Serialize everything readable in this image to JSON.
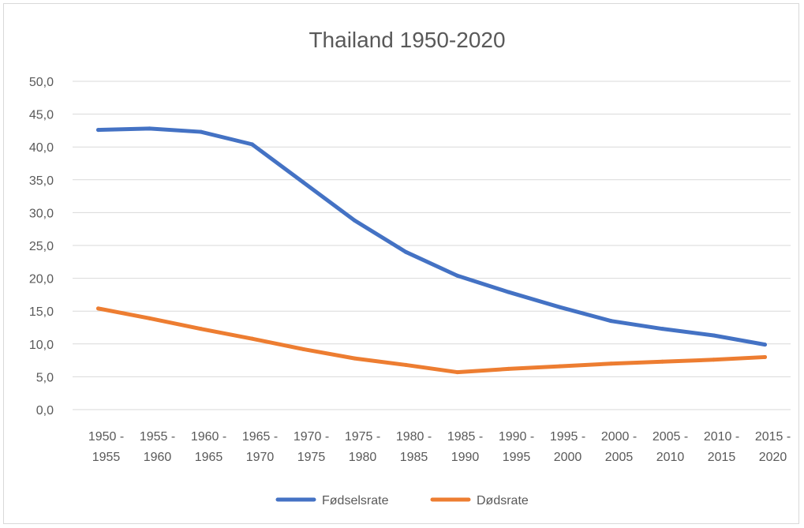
{
  "chart_data": {
    "type": "line",
    "title": "Thailand 1950-2020",
    "xlabel": "",
    "ylabel": "",
    "categories": [
      [
        "1950 -",
        "1955"
      ],
      [
        "1955 -",
        "1960"
      ],
      [
        "1960 -",
        "1965"
      ],
      [
        "1965 -",
        "1970"
      ],
      [
        "1970 -",
        "1975"
      ],
      [
        "1975 -",
        "1980"
      ],
      [
        "1980 -",
        "1985"
      ],
      [
        "1985 -",
        "1990"
      ],
      [
        "1990 -",
        "1995"
      ],
      [
        "1995 -",
        "2000"
      ],
      [
        "2000 -",
        "2005"
      ],
      [
        "2005 -",
        "2010"
      ],
      [
        "2010 -",
        "2015"
      ],
      [
        "2015 -",
        "2020"
      ]
    ],
    "y_ticks": [
      "0,0",
      "5,0",
      "10,0",
      "15,0",
      "20,0",
      "25,0",
      "30,0",
      "35,0",
      "40,0",
      "45,0",
      "50,0"
    ],
    "ylim": [
      0,
      50
    ],
    "grid": true,
    "legend_position": "bottom",
    "series": [
      {
        "name": "Fødselsrate",
        "color": "#4472c4",
        "values": [
          42.6,
          42.8,
          42.3,
          40.4,
          34.6,
          28.8,
          24.0,
          20.4,
          17.9,
          15.6,
          13.5,
          12.3,
          11.3,
          9.9
        ]
      },
      {
        "name": "Dødsrate",
        "color": "#ed7d31",
        "values": [
          15.4,
          13.9,
          12.3,
          10.8,
          9.2,
          7.8,
          6.8,
          5.7,
          6.2,
          6.6,
          7.0,
          7.3,
          7.6,
          8.0
        ]
      }
    ]
  }
}
